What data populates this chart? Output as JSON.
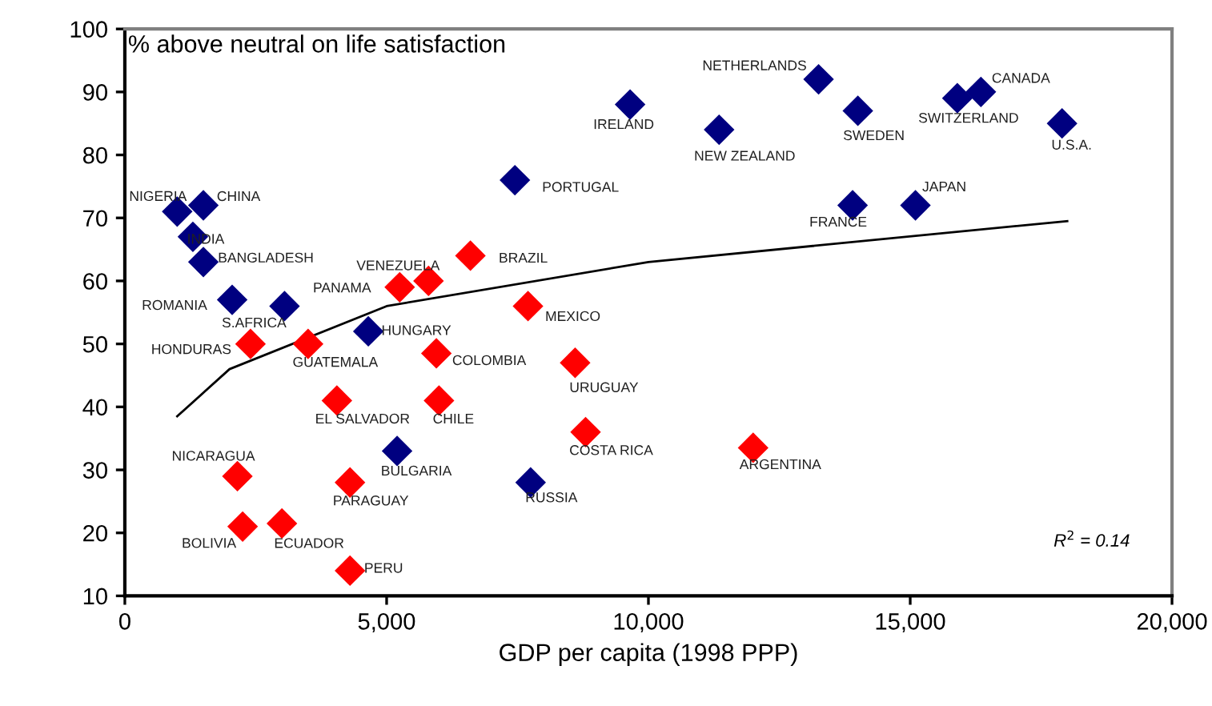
{
  "chart_data": {
    "type": "scatter",
    "xlabel": "GDP per capita (1998 PPP)",
    "ylabel": "% above neutral on life satisfaction",
    "marker": "diamond",
    "grid": false,
    "legend": false,
    "xlim": [
      0,
      20000
    ],
    "ylim": [
      10,
      100
    ],
    "xticks": [
      0,
      {
        "value": 5000,
        "label": "5,000"
      },
      {
        "value": 10000,
        "label": "10,000"
      },
      {
        "value": 15000,
        "label": "15,000"
      },
      {
        "value": 20000,
        "label": "20,000"
      }
    ],
    "yticks": [
      10,
      20,
      30,
      40,
      50,
      60,
      70,
      80,
      90,
      100
    ],
    "series": [
      {
        "color": "#000080",
        "x": [
          1000,
          1500,
          1300,
          1500,
          2050,
          3050,
          4650,
          5200,
          7750,
          7450,
          9650,
          11350,
          13250,
          14000,
          15900,
          16350,
          17900,
          13900,
          15100
        ],
        "values": [
          71,
          72,
          67,
          63,
          57,
          56,
          52,
          33,
          28,
          76,
          88,
          84,
          92,
          87,
          89,
          90,
          85,
          72,
          72
        ]
      },
      {
        "color": "#ff0000",
        "x": [
          5800,
          5250,
          6600,
          7700,
          2400,
          3500,
          5950,
          4050,
          6000,
          2150,
          4300,
          2250,
          3000,
          4300,
          8600,
          8800,
          12000
        ],
        "values": [
          60,
          59,
          64,
          56,
          50,
          50,
          48.5,
          41,
          41,
          29,
          28,
          21,
          21.5,
          14,
          47,
          36,
          33.5
        ]
      },
      {
        "type": "line",
        "color": "#000000",
        "marker": "none",
        "x": [
          1000,
          2000,
          5000,
          10000,
          18000
        ],
        "values": [
          38.5,
          46,
          56,
          63,
          69.5
        ]
      }
    ],
    "annotations": [
      {
        "text": "NIGERIA",
        "x": 1000,
        "y": 71
      },
      {
        "text": "CHINA",
        "x": 1500,
        "y": 72
      },
      {
        "text": "INDIA",
        "x": 1300,
        "y": 67
      },
      {
        "text": "BANGLADESH",
        "x": 1500,
        "y": 63
      },
      {
        "text": "ROMANIA",
        "x": 2050,
        "y": 57
      },
      {
        "text": "S.AFRICA",
        "x": 3050,
        "y": 56
      },
      {
        "text": "HUNGARY",
        "x": 4650,
        "y": 52
      },
      {
        "text": "BULGARIA",
        "x": 5200,
        "y": 33
      },
      {
        "text": "RUSSIA",
        "x": 7750,
        "y": 28
      },
      {
        "text": "PORTUGAL",
        "x": 7450,
        "y": 76
      },
      {
        "text": "IRELAND",
        "x": 9650,
        "y": 88
      },
      {
        "text": "NEW ZEALAND",
        "x": 11350,
        "y": 84
      },
      {
        "text": "NETHERLANDS",
        "x": 13250,
        "y": 92
      },
      {
        "text": "SWEDEN",
        "x": 14000,
        "y": 87
      },
      {
        "text": "SWITZERLAND",
        "x": 15900,
        "y": 89
      },
      {
        "text": "CANADA",
        "x": 16350,
        "y": 90
      },
      {
        "text": "U.S.A.",
        "x": 17900,
        "y": 85
      },
      {
        "text": "FRANCE",
        "x": 13900,
        "y": 72
      },
      {
        "text": "JAPAN",
        "x": 15100,
        "y": 72
      },
      {
        "text": "VENEZUELA",
        "x": 5800,
        "y": 60
      },
      {
        "text": "PANAMA",
        "x": 5250,
        "y": 59
      },
      {
        "text": "BRAZIL",
        "x": 6600,
        "y": 64
      },
      {
        "text": "MEXICO",
        "x": 7700,
        "y": 56
      },
      {
        "text": "HONDURAS",
        "x": 2400,
        "y": 50
      },
      {
        "text": "GUATEMALA",
        "x": 3500,
        "y": 50
      },
      {
        "text": "COLOMBIA",
        "x": 5950,
        "y": 48.5
      },
      {
        "text": "EL SALVADOR",
        "x": 4050,
        "y": 41
      },
      {
        "text": "CHILE",
        "x": 6000,
        "y": 41
      },
      {
        "text": "NICARAGUA",
        "x": 2150,
        "y": 29
      },
      {
        "text": "PARAGUAY",
        "x": 4300,
        "y": 28
      },
      {
        "text": "BOLIVIA",
        "x": 2250,
        "y": 21
      },
      {
        "text": "ECUADOR",
        "x": 3000,
        "y": 21.5
      },
      {
        "text": "PERU",
        "x": 4300,
        "y": 14
      },
      {
        "text": "URUGUAY",
        "x": 8600,
        "y": 47
      },
      {
        "text": "COSTA RICA",
        "x": 8800,
        "y": 36
      },
      {
        "text": "ARGENTINA",
        "x": 12000,
        "y": 33.5
      },
      "R$^{2}$ = 0.14"
    ]
  }
}
